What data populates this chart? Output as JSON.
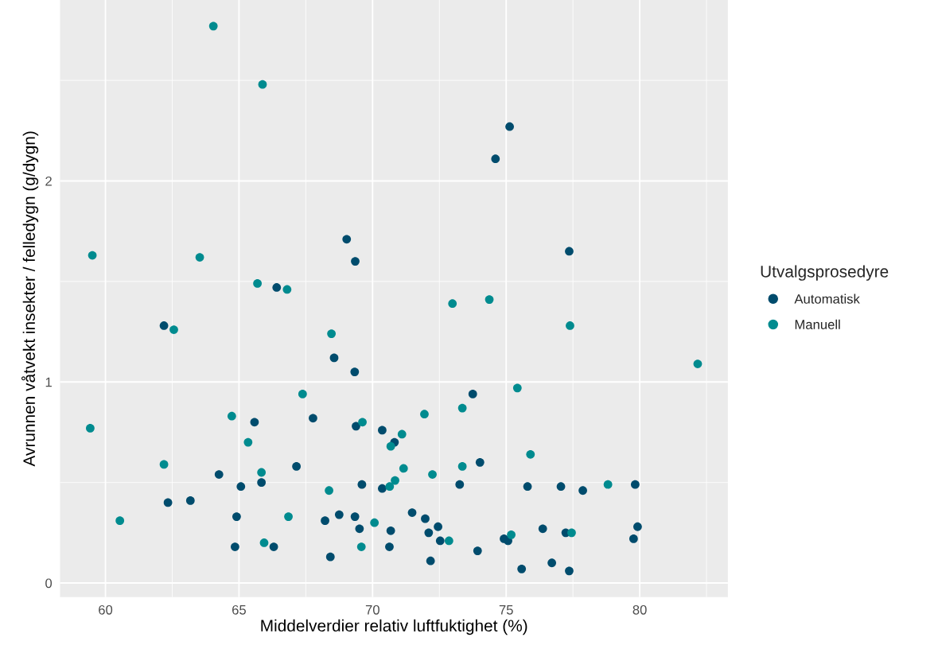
{
  "chart_data": {
    "type": "scatter",
    "xlabel": "Middelverdier relativ luftfuktighet (%)",
    "ylabel": "Avrunnen våtvekt insekter / felledygn (g/dygn)",
    "legend_title": "Utvalgsprosedyre",
    "legend": "right",
    "grid": true,
    "marker": "circle",
    "xlim": [
      58.3,
      83.3
    ],
    "ylim": [
      -0.07,
      2.9
    ],
    "xticks": [
      60,
      65,
      70,
      75,
      80
    ],
    "yticks": [
      0,
      1,
      2
    ],
    "series": [
      {
        "name": "Automatisk",
        "color": "#004c6d",
        "x": [
          75.13,
          74.6,
          69.03,
          69.35,
          66.41,
          62.19,
          68.56,
          69.33,
          65.58,
          67.77,
          69.38,
          64.25,
          65.07,
          65.84,
          67.15,
          62.34,
          63.18,
          64.91,
          68.22,
          68.75,
          69.34,
          69.51,
          64.85,
          66.3,
          68.42,
          77.36,
          73.75,
          70.36,
          70.82,
          74.02,
          69.6,
          70.36,
          73.26,
          75.8,
          77.05,
          77.87,
          79.83,
          70.68,
          70.63,
          71.48,
          71.97,
          72.1,
          72.45,
          72.53,
          72.17,
          73.93,
          74.92,
          75.07,
          75.58,
          76.37,
          76.71,
          77.23,
          77.36,
          79.92,
          79.77
        ],
        "values": [
          2.27,
          2.11,
          1.71,
          1.6,
          1.47,
          1.28,
          1.12,
          1.05,
          0.8,
          0.82,
          0.78,
          0.54,
          0.48,
          0.5,
          0.58,
          0.4,
          0.41,
          0.33,
          0.31,
          0.34,
          0.33,
          0.27,
          0.18,
          0.18,
          0.13,
          1.65,
          0.94,
          0.76,
          0.7,
          0.6,
          0.49,
          0.47,
          0.49,
          0.48,
          0.48,
          0.46,
          0.49,
          0.26,
          0.18,
          0.35,
          0.32,
          0.25,
          0.28,
          0.21,
          0.11,
          0.16,
          0.22,
          0.21,
          0.07,
          0.27,
          0.1,
          0.25,
          0.06,
          0.28,
          0.22
        ]
      },
      {
        "name": "Manuell",
        "color": "#008b8f",
        "x": [
          64.04,
          65.88,
          59.51,
          63.53,
          65.69,
          66.8,
          62.56,
          68.46,
          67.38,
          59.43,
          64.73,
          65.34,
          69.62,
          62.19,
          65.84,
          60.54,
          66.85,
          68.37,
          70.07,
          65.94,
          69.58,
          72.99,
          74.37,
          77.39,
          82.17,
          75.42,
          73.36,
          71.94,
          71.1,
          70.68,
          75.91,
          73.36,
          71.16,
          72.24,
          70.64,
          70.84,
          78.81,
          72.86,
          75.19,
          77.45
        ],
        "values": [
          2.77,
          2.48,
          1.63,
          1.62,
          1.49,
          1.46,
          1.26,
          1.24,
          0.94,
          0.77,
          0.83,
          0.7,
          0.8,
          0.59,
          0.55,
          0.31,
          0.33,
          0.46,
          0.3,
          0.2,
          0.18,
          1.39,
          1.41,
          1.28,
          1.09,
          0.97,
          0.87,
          0.84,
          0.74,
          0.68,
          0.64,
          0.58,
          0.57,
          0.54,
          0.48,
          0.51,
          0.49,
          0.21,
          0.24,
          0.25
        ]
      }
    ]
  }
}
